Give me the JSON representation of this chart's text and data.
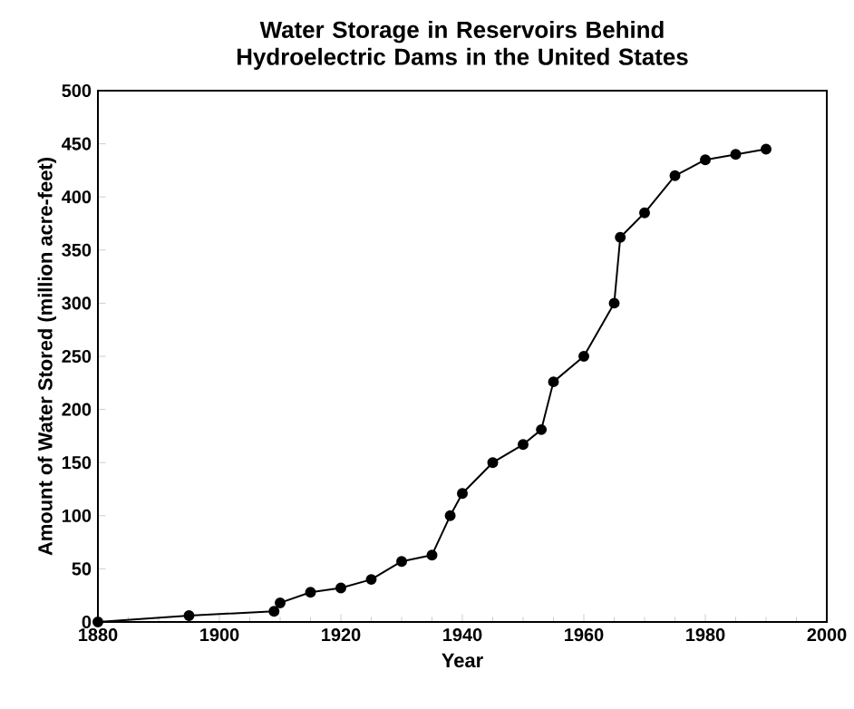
{
  "chart_data": {
    "type": "line",
    "title": "Water Storage in Reservoirs Behind Hydroelectric Dams in the United States",
    "xlabel": "Year",
    "ylabel": "Amount of Water Stored (million acre-feet)",
    "x": [
      1880,
      1895,
      1909,
      1910,
      1915,
      1920,
      1925,
      1930,
      1935,
      1938,
      1940,
      1945,
      1950,
      1953,
      1955,
      1960,
      1965,
      1966,
      1970,
      1975,
      1980,
      1985,
      1990
    ],
    "values": [
      0,
      6,
      10,
      18,
      28,
      32,
      40,
      57,
      63,
      100,
      121,
      150,
      167,
      181,
      226,
      250,
      300,
      362,
      385,
      420,
      435,
      440,
      445
    ],
    "color": "#000000",
    "marker": "circle",
    "line_style": "solid",
    "xlim": [
      1880,
      2000
    ],
    "ylim": [
      0,
      500
    ],
    "xticks": [
      1880,
      1900,
      1920,
      1940,
      1960,
      1980,
      2000
    ],
    "yticks": [
      0,
      50,
      100,
      150,
      200,
      250,
      300,
      350,
      400,
      450,
      500
    ]
  }
}
